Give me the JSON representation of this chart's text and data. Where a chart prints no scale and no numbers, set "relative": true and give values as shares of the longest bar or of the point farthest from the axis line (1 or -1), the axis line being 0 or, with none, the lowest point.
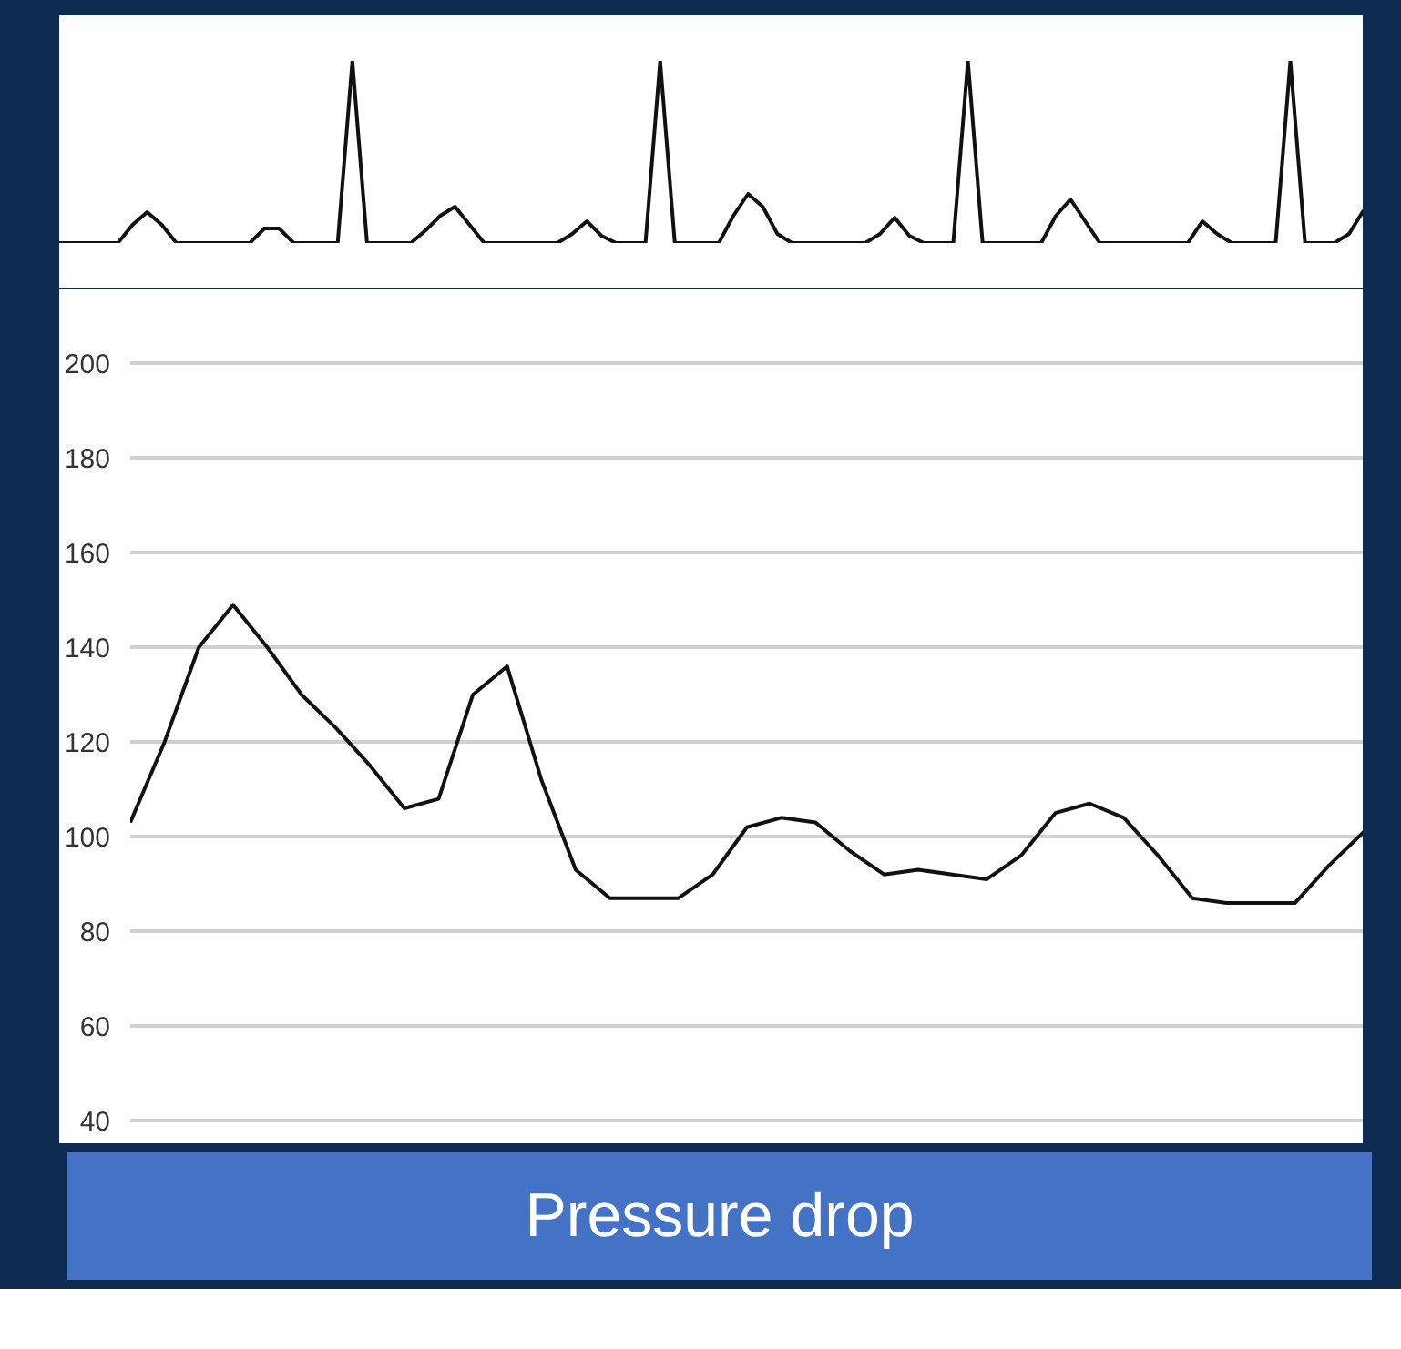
{
  "chart_data": [
    {
      "type": "line",
      "relative": true,
      "categories": [
        null,
        null,
        null,
        null,
        null,
        null,
        null,
        null,
        null,
        null,
        null,
        null,
        null,
        null,
        null,
        null,
        null,
        null,
        null,
        null,
        null,
        null,
        null,
        null,
        null,
        null,
        null,
        null,
        null,
        null,
        null,
        null,
        null,
        null,
        null,
        null,
        null,
        null,
        null,
        null,
        null,
        null,
        null,
        null,
        null,
        null,
        null,
        null,
        null,
        null,
        null,
        null,
        null,
        null,
        null,
        null,
        null,
        null,
        null,
        null,
        null,
        null,
        null,
        null,
        null,
        null,
        null,
        null,
        null,
        null,
        null,
        null,
        null,
        null,
        null,
        null,
        null,
        null,
        null,
        null,
        null,
        null,
        null,
        null,
        null,
        null,
        null,
        null,
        null,
        null
      ],
      "series": [
        {
          "color": "#111111",
          "values": [
            0,
            0,
            0,
            0,
            0,
            0.1,
            0.17,
            0.1,
            0,
            0,
            0,
            0,
            0,
            0,
            0.08,
            0.08,
            0,
            0,
            0,
            0,
            1,
            0,
            0,
            0,
            0,
            0.07,
            0.15,
            0.2,
            0.1,
            0,
            0,
            0,
            0,
            0,
            0,
            0.05,
            0.12,
            0.04,
            0,
            0,
            0,
            1,
            0,
            0,
            0,
            0,
            0.15,
            0.27,
            0.2,
            0.05,
            0,
            0,
            0,
            0,
            0,
            0,
            0.05,
            0.14,
            0.04,
            0,
            0,
            0,
            1,
            0,
            0,
            0,
            0,
            0,
            0.15,
            0.24,
            0.12,
            0,
            0,
            0,
            0,
            0,
            0,
            0,
            0.12,
            0.05,
            0,
            0,
            0,
            0,
            1,
            0,
            0,
            0,
            0.05,
            0.18
          ]
        }
      ]
    },
    {
      "type": "line",
      "categories": [
        null,
        null,
        null,
        null,
        null,
        null,
        null,
        null,
        null,
        null,
        null,
        null,
        null,
        null,
        null,
        null,
        null,
        null,
        null,
        null,
        null,
        null,
        null,
        null,
        null,
        null,
        null,
        null,
        null,
        null,
        null,
        null,
        null,
        null,
        null,
        null,
        null
      ],
      "series": [
        {
          "color": "#111111",
          "values": [
            103,
            120,
            140,
            149,
            140,
            130,
            123,
            115,
            106,
            108,
            130,
            136,
            112,
            93,
            87,
            87,
            87,
            92,
            102,
            104,
            103,
            97,
            92,
            93,
            92,
            91,
            96,
            105,
            107,
            104,
            96,
            87,
            86,
            86,
            86,
            94,
            101
          ]
        }
      ],
      "ylim": [
        35,
        212
      ],
      "yticks": [
        40,
        60,
        80,
        100,
        120,
        140,
        160,
        180,
        200
      ],
      "grid": "y",
      "tick_labels": "y",
      "annotations": [
        "Pressure drop"
      ]
    }
  ]
}
